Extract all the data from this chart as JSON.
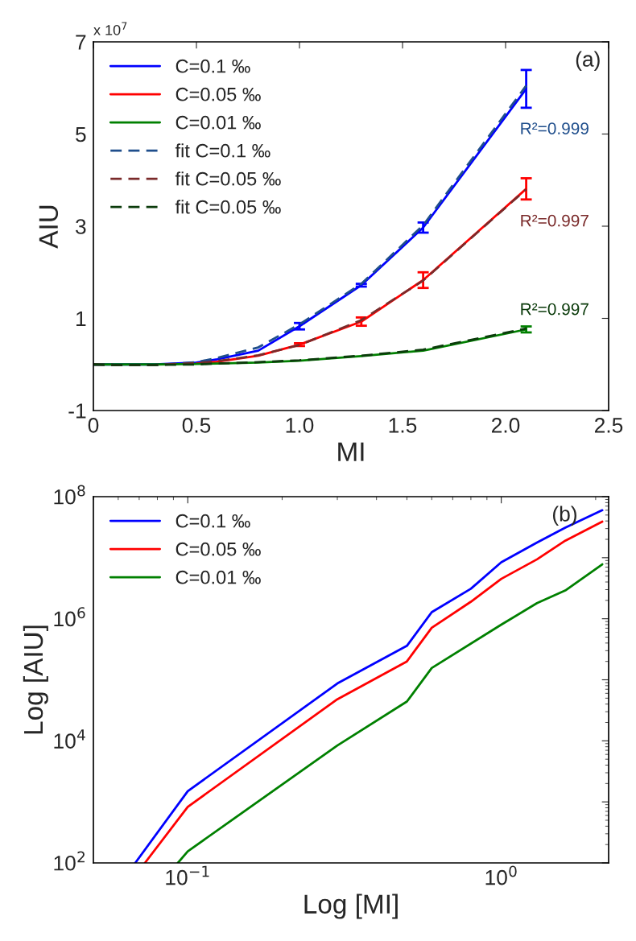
{
  "chart_data": [
    {
      "type": "line",
      "xlabel": "MI",
      "ylabel": "AIU",
      "xlim": [
        0,
        2.5
      ],
      "ylim": [
        -1,
        7
      ],
      "xticks": [
        0,
        0.5,
        {
          "value": 1,
          "label": "1.0"
        },
        1.5,
        {
          "value": 2,
          "label": "2.0"
        },
        2.5
      ],
      "yticks": [
        -1,
        1,
        3,
        5,
        7
      ],
      "x": [
        0,
        0.1,
        0.3,
        0.5,
        0.6,
        0.8,
        1.0,
        1.3,
        1.6,
        2.1
      ],
      "grid": false,
      "legend": "top left",
      "marker": "none",
      "annotations": [
        "x 10$^{7}$",
        "(a)",
        "R²=0.999",
        "R²=0.997",
        "R²=0.997"
      ],
      "series": [
        {
          "name": "C=0.1 ‰",
          "color": "#0000ff",
          "line_style": "solid",
          "values": [
            0,
            0,
            0,
            0.04,
            0.11,
            0.3,
            0.83,
            1.72,
            2.97,
            5.98
          ],
          "errors": [
            null,
            null,
            null,
            null,
            null,
            null,
            0.07,
            0.03,
            0.11,
            0.41
          ]
        },
        {
          "name": "C=0.05 ‰",
          "color": "#ff0000",
          "line_style": "solid",
          "values": [
            null,
            null,
            null,
            0.02,
            0.06,
            0.19,
            0.43,
            0.93,
            1.83,
            3.81
          ],
          "errors": [
            null,
            null,
            null,
            null,
            null,
            null,
            0.03,
            0.09,
            0.17,
            0.23
          ]
        },
        {
          "name": "C=0.01 ‰",
          "color": "#008000",
          "line_style": "solid",
          "values": [
            0,
            0,
            0,
            0.01,
            0.02,
            0.04,
            0.08,
            0.18,
            0.3,
            0.76
          ],
          "errors": [
            null,
            null,
            null,
            null,
            null,
            null,
            null,
            null,
            null,
            0.065
          ]
        },
        {
          "name": "fit C=0.1 ‰",
          "color": "#1f4e8c",
          "line_style": "dashed",
          "values": [
            0,
            -0.01,
            -0.01,
            0.05,
            0.14,
            0.37,
            0.87,
            1.75,
            3.02,
            6.05
          ]
        },
        {
          "name": "fit C=0.05 ‰",
          "color": "#7a2a2a",
          "line_style": "dashed",
          "values": [
            0,
            -0.01,
            -0.01,
            0.03,
            0.07,
            0.2,
            0.42,
            0.96,
            1.82,
            3.8
          ]
        },
        {
          "name": "fit C=0.05 ‰",
          "color": "#0b3b0b",
          "line_style": "dashed",
          "values": [
            0,
            -0.01,
            -0.01,
            0.0,
            0.02,
            0.05,
            0.09,
            0.19,
            0.32,
            0.78
          ]
        }
      ]
    },
    {
      "type": "line",
      "xlabel": "Log [MI]",
      "ylabel": "Log [AIU]",
      "log": "xy",
      "xlim": [
        0.05,
        2.2
      ],
      "ylim": [
        100,
        100000000
      ],
      "xticks": [
        {
          "value": 0.1,
          "label": "10$^{−1}$"
        },
        {
          "value": 1,
          "label": "10$^{0}$"
        }
      ],
      "yticks": [
        {
          "value": 100,
          "label": "10$^{2}$"
        },
        {
          "value": 1000,
          "label": null
        },
        {
          "value": 10000,
          "label": "10$^{4}$"
        },
        {
          "value": 100000,
          "label": null
        },
        {
          "value": 1000000,
          "label": "10$^{6}$"
        },
        {
          "value": 10000000,
          "label": null
        },
        {
          "value": 100000000,
          "label": "10$^{8}$"
        }
      ],
      "grid": false,
      "legend": "top left",
      "marker": "none",
      "annotations": [
        "(b)"
      ],
      "series": [
        {
          "name": "C=0.1 ‰",
          "color": "#0000ff",
          "x": [
            0.068,
            0.1,
            0.3,
            0.5,
            0.6,
            0.8,
            1.0,
            1.3,
            1.6,
            2.1
          ],
          "values": [
            100,
            1500,
            87000,
            360000,
            1280000,
            3100000,
            8400000,
            17700000,
            31000000,
            60000000
          ]
        },
        {
          "name": "C=0.05 ‰",
          "color": "#ff0000",
          "x": [
            0.073,
            0.1,
            0.3,
            0.5,
            0.6,
            0.8,
            1.0,
            1.3,
            1.6,
            2.1
          ],
          "values": [
            100,
            830,
            48000,
            200000,
            710000,
            1900000,
            4500000,
            9400000,
            19000000,
            39000000
          ]
        },
        {
          "name": "C=0.01 ‰",
          "color": "#008000",
          "x": [
            0.093,
            0.1,
            0.3,
            0.5,
            0.6,
            1.0,
            1.3,
            1.6,
            2.1
          ],
          "values": [
            100,
            155,
            8400,
            44000,
            156000,
            800000,
            1800000,
            2900000,
            7800000
          ]
        }
      ]
    }
  ]
}
